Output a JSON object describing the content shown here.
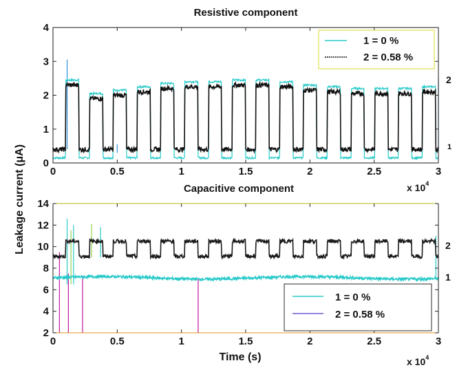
{
  "ylabel": "Leakage current (μA)",
  "chart_data": [
    {
      "type": "line",
      "title": "Resistive component",
      "xlabel": "",
      "x_multiplier": "x 10",
      "x_multiplier_exp": "4",
      "xlim": [
        0,
        3
      ],
      "ylim": [
        0,
        4
      ],
      "xticks": [
        "0",
        "0.5",
        "1",
        "1.5",
        "2",
        "2.5",
        "3"
      ],
      "yticks": [
        "0",
        "1",
        "2",
        "3",
        "4"
      ],
      "legend_position": "top-right",
      "pulse": {
        "start": 0.1,
        "period": 0.185,
        "cycles": 16,
        "duty": 0.55,
        "high_levels": [
          2.45,
          2.05,
          2.15,
          2.25,
          2.35,
          2.4,
          2.4,
          2.45,
          2.45,
          2.4,
          2.3,
          2.25,
          2.2,
          2.2,
          2.2,
          2.25
        ],
        "spike_peak": 2.75
      },
      "series": [
        {
          "name": "1 = 0 %",
          "color": "#27c9c9",
          "low": 0.15,
          "high_from_pulse": true,
          "line_label": "1"
        },
        {
          "name": "2 = 0.58 %",
          "color": "#111111",
          "low": 0.4,
          "high_from_pulse": true,
          "line_label": "2"
        }
      ],
      "spikes": [
        {
          "x": 0.11,
          "y_from": 0.4,
          "y_to": 3.05,
          "color": "#2a8fd8"
        },
        {
          "x": 0.5,
          "y_from": 0.3,
          "y_to": 0.55,
          "color": "#2a8fd8"
        },
        {
          "x": 3.0,
          "y_from": 0.3,
          "y_to": 2.5,
          "color": "#2a8fd8"
        }
      ]
    },
    {
      "type": "line",
      "title": "Capacitive component",
      "xlabel": "Time (s)",
      "x_multiplier": "x 10",
      "x_multiplier_exp": "4",
      "xlim": [
        0,
        3
      ],
      "ylim": [
        2,
        14
      ],
      "xticks": [
        "0",
        "0.5",
        "1",
        "1.5",
        "2",
        "2.5",
        "3"
      ],
      "yticks": [
        "2",
        "4",
        "6",
        "8",
        "10",
        "12",
        "14"
      ],
      "legend_position": "bottom-right",
      "pulse": {
        "start": 0.1,
        "period": 0.185,
        "cycles": 16,
        "duty": 0.55,
        "high": 10.5,
        "low": 9.1
      },
      "series": [
        {
          "name": "1 = 0 %",
          "color": "#27c9c9",
          "level": 7.1,
          "line_label": "1"
        },
        {
          "name": "2 = 0.58 %",
          "color": "#6b5bd6",
          "pulsed": true,
          "line_label": "2"
        }
      ],
      "spikes": [
        {
          "x": 0.05,
          "y_from": 2,
          "y_to": 9.5,
          "color": "#c0179b"
        },
        {
          "x": 0.12,
          "y_from": 2,
          "y_to": 7.5,
          "color": "#c0179b"
        },
        {
          "x": 0.23,
          "y_from": 2,
          "y_to": 7.3,
          "color": "#c0179b"
        },
        {
          "x": 1.13,
          "y_from": 2,
          "y_to": 7.0,
          "color": "#c0179b"
        },
        {
          "x": 0.11,
          "y_from": 6.5,
          "y_to": 12.6,
          "color": "#27c9c9"
        },
        {
          "x": 0.14,
          "y_from": 6.5,
          "y_to": 11.5,
          "color": "#8fd14f"
        },
        {
          "x": 0.16,
          "y_from": 6.5,
          "y_to": 12.0,
          "color": "#27c9c9"
        },
        {
          "x": 0.3,
          "y_from": 9.0,
          "y_to": 12.1,
          "color": "#8fd14f"
        },
        {
          "x": 0.37,
          "y_from": 9.0,
          "y_to": 11.8,
          "color": "#27c9c9"
        },
        {
          "x": 2.98,
          "y_from": 7.0,
          "y_to": 11.0,
          "color": "#27c9c9"
        }
      ]
    }
  ]
}
